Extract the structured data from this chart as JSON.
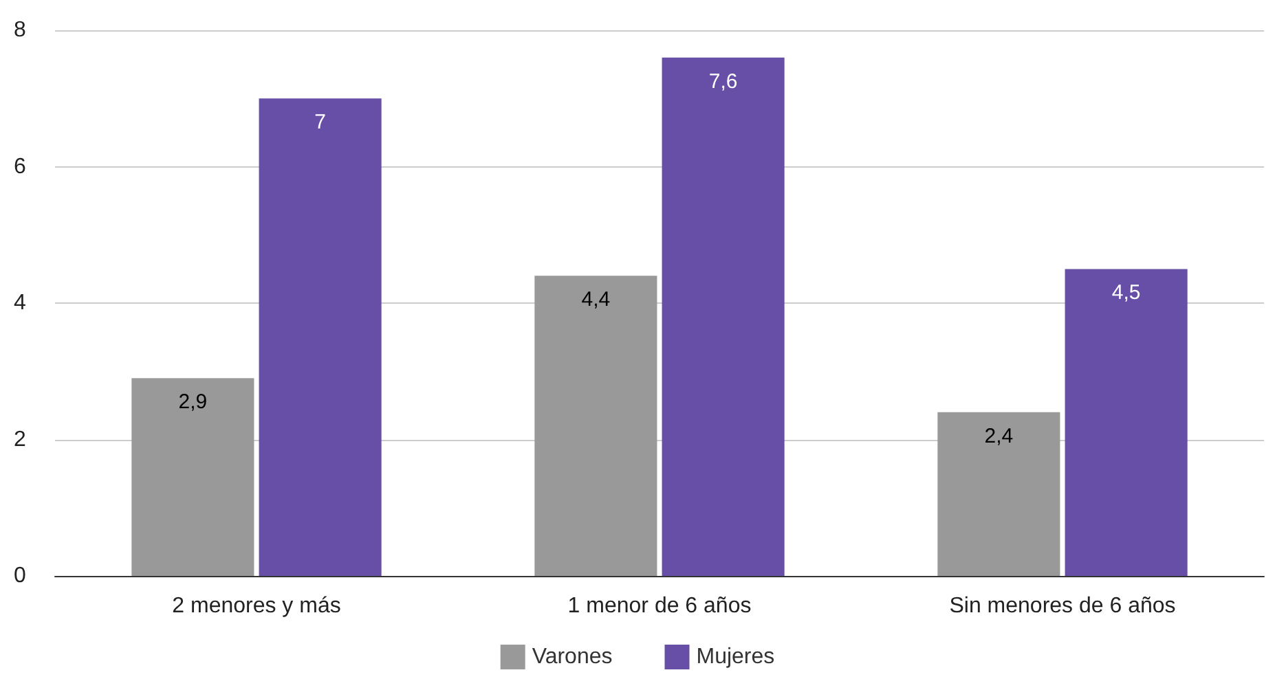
{
  "chart_data": {
    "type": "bar",
    "categories": [
      "2 menores y más",
      "1 menor de 6 años",
      "Sin menores de 6 años"
    ],
    "series": [
      {
        "name": "Varones",
        "color": "#999999",
        "values": [
          2.9,
          4.4,
          2.4
        ],
        "value_labels": [
          "2,9",
          "4,4",
          "2,4"
        ]
      },
      {
        "name": "Mujeres",
        "color": "#674ea7",
        "values": [
          7,
          7.6,
          4.5
        ],
        "value_labels": [
          "7",
          "7,6",
          "4,5"
        ]
      }
    ],
    "ylim": [
      0,
      8
    ],
    "yticks": [
      0,
      2,
      4,
      6,
      8
    ],
    "grid": "y",
    "legend": "bottom"
  }
}
